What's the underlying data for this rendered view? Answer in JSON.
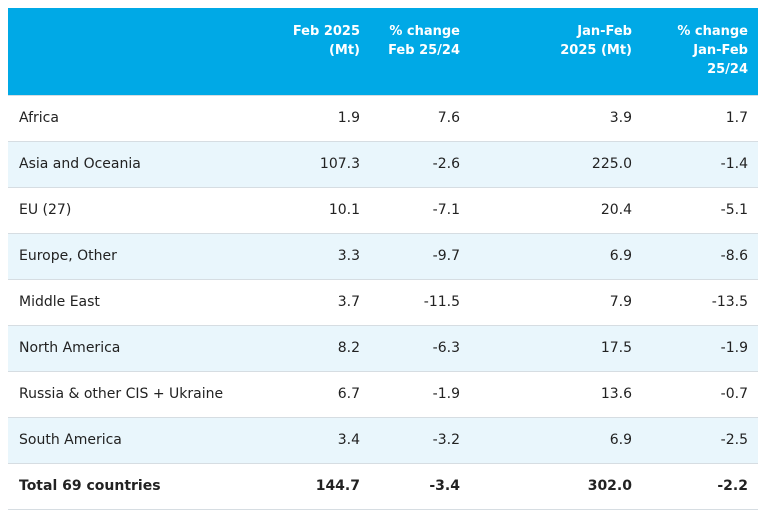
{
  "headers": {
    "region": "",
    "feb": "Feb 2025\n(Mt)",
    "feb_change": "% change\nFeb 25/24",
    "janfeb": "Jan-Feb\n2025 (Mt)",
    "janfeb_change": "% change\nJan-Feb\n25/24"
  },
  "rows": [
    {
      "region": "Africa",
      "feb": "1.9",
      "feb_change": "7.6",
      "janfeb": "3.9",
      "janfeb_change": "1.7"
    },
    {
      "region": "Asia and Oceania",
      "feb": "107.3",
      "feb_change": "-2.6",
      "janfeb": "225.0",
      "janfeb_change": "-1.4"
    },
    {
      "region": "EU (27)",
      "feb": "10.1",
      "feb_change": "-7.1",
      "janfeb": "20.4",
      "janfeb_change": "-5.1"
    },
    {
      "region": "Europe, Other",
      "feb": "3.3",
      "feb_change": "-9.7",
      "janfeb": "6.9",
      "janfeb_change": "-8.6"
    },
    {
      "region": "Middle East",
      "feb": "3.7",
      "feb_change": "-11.5",
      "janfeb": "7.9",
      "janfeb_change": "-13.5"
    },
    {
      "region": "North America",
      "feb": "8.2",
      "feb_change": "-6.3",
      "janfeb": "17.5",
      "janfeb_change": "-1.9"
    },
    {
      "region": "Russia & other CIS + Ukraine",
      "feb": "6.7",
      "feb_change": "-1.9",
      "janfeb": "13.6",
      "janfeb_change": "-0.7"
    },
    {
      "region": "South America",
      "feb": "3.4",
      "feb_change": "-3.2",
      "janfeb": "6.9",
      "janfeb_change": "-2.5"
    },
    {
      "region": "Total 69 countries",
      "feb": "144.7",
      "feb_change": "-3.4",
      "janfeb": "302.0",
      "janfeb_change": "-2.2"
    }
  ],
  "colors": {
    "header_bg": "#00a9e6",
    "header_text": "#ffffff",
    "stripe_bg": "#e9f6fc",
    "border": "#d6dde2"
  }
}
